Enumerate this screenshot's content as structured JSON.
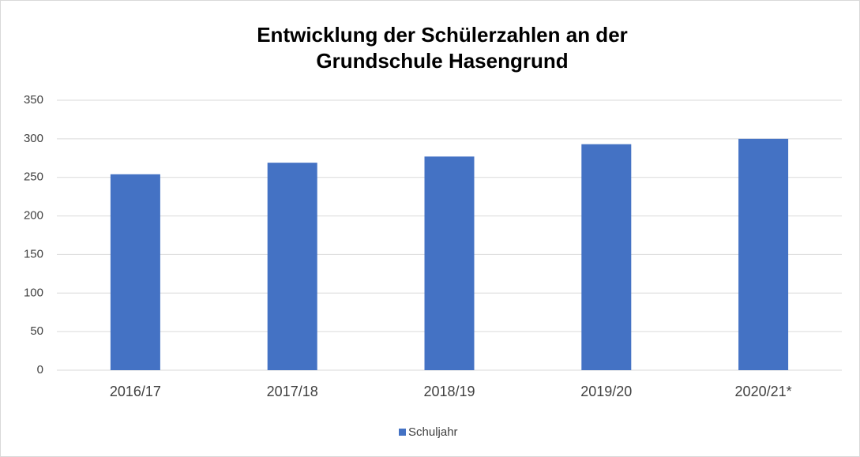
{
  "chart_data": {
    "type": "bar",
    "title": "Entwicklung der Schülerzahlen an der Grundschule Hasengrund",
    "categories": [
      "2016/17",
      "2017/18",
      "2018/19",
      "2019/20",
      "2020/21*"
    ],
    "series": [
      {
        "name": "Schuljahr",
        "color": "#4472c4",
        "values": [
          254,
          269,
          277,
          293,
          300
        ]
      }
    ],
    "ylim": [
      0,
      350
    ],
    "yticks": [
      0,
      50,
      100,
      150,
      200,
      250,
      300,
      350
    ],
    "grid": true,
    "legend": "bottom"
  }
}
